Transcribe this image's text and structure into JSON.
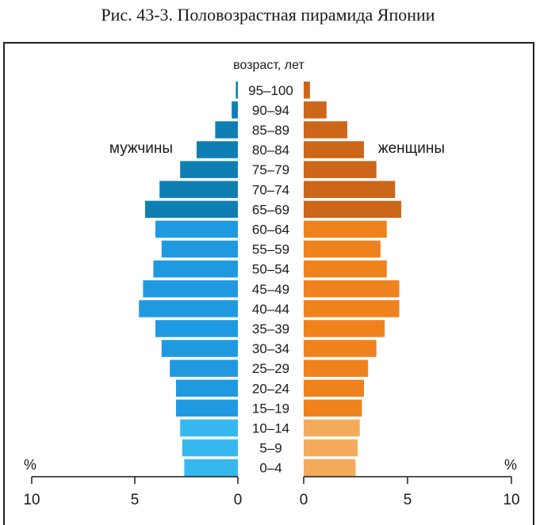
{
  "caption": "Рис. 43-3. Половозрастная пирамида Японии",
  "chart_data": {
    "type": "bar",
    "orientation": "horizontal-pyramid",
    "age_axis_title": "возраст, лет",
    "categories": [
      "95–100",
      "90–94",
      "85–89",
      "80–84",
      "75–79",
      "70–74",
      "65–69",
      "60–64",
      "55–59",
      "50–54",
      "45–49",
      "40–44",
      "35–39",
      "30–34",
      "25–29",
      "20–24",
      "15–19",
      "10–14",
      "5–9",
      "0–4"
    ],
    "series": [
      {
        "name": "мужчины",
        "side": "left",
        "values": [
          0.1,
          0.3,
          1.1,
          2.0,
          2.8,
          3.8,
          4.5,
          4.0,
          3.7,
          4.1,
          4.6,
          4.8,
          4.0,
          3.7,
          3.3,
          3.0,
          3.0,
          2.8,
          2.7,
          2.6
        ]
      },
      {
        "name": "женщины",
        "side": "right",
        "values": [
          0.3,
          1.1,
          2.1,
          2.9,
          3.5,
          4.4,
          4.7,
          4.0,
          3.7,
          4.0,
          4.6,
          4.6,
          3.9,
          3.5,
          3.1,
          2.9,
          2.8,
          2.7,
          2.6,
          2.5
        ]
      }
    ],
    "left_axis": {
      "ticks": [
        10,
        5,
        0
      ],
      "unit": "%",
      "range": [
        0,
        10
      ]
    },
    "right_axis": {
      "ticks": [
        0,
        5,
        10
      ],
      "unit": "%",
      "range": [
        0,
        10
      ]
    },
    "colors": {
      "male": [
        "#0f7fb3",
        "#0f7fb3",
        "#0f7fb3",
        "#0f7fb3",
        "#0f7fb3",
        "#0f7fb3",
        "#0f7fb3",
        "#1f9ae0",
        "#1f9ae0",
        "#1f9ae0",
        "#1f9ae0",
        "#1f9ae0",
        "#1f9ae0",
        "#1f9ae0",
        "#1f9ae0",
        "#1f9ae0",
        "#1f9ae0",
        "#36b8ef",
        "#36b8ef",
        "#36b8ef"
      ],
      "female": [
        "#cc6619",
        "#cc6619",
        "#cc6619",
        "#cc6619",
        "#cc6619",
        "#cc6619",
        "#cc6619",
        "#f0821e",
        "#f0821e",
        "#f0821e",
        "#f0821e",
        "#f0821e",
        "#f0821e",
        "#f0821e",
        "#f0821e",
        "#f0821e",
        "#f0821e",
        "#f4ab5c",
        "#f4ab5c",
        "#f4ab5c"
      ]
    },
    "grid": false
  }
}
